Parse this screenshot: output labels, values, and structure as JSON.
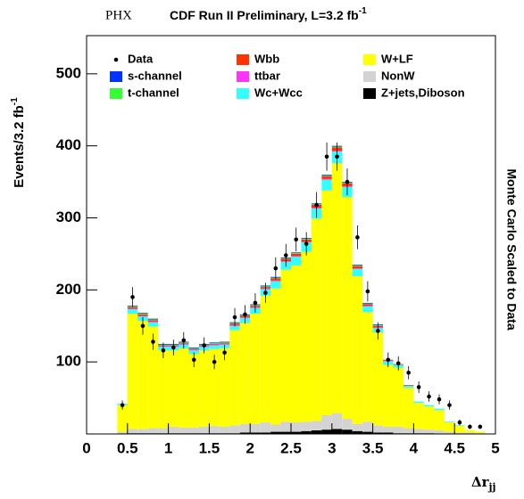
{
  "chart_data": {
    "type": "stacked-histogram",
    "header": "PHX",
    "title": "CDF Run II Preliminary, L=3.2 fb",
    "title_superscript": "-1",
    "ylabel": "Events/3.2 fb",
    "ylabel_superscript": "-1",
    "xlabel": "Δr",
    "xlabel_subscript": "jj",
    "right_label": "Monte Carlo Scaled to Data",
    "xlim": [
      0,
      5
    ],
    "ylim": [
      0,
      553
    ],
    "xticks": [
      0,
      0.5,
      1,
      1.5,
      2,
      2.5,
      3,
      3.5,
      4,
      4.5,
      5
    ],
    "yticks": [
      100,
      200,
      300,
      400,
      500
    ],
    "bins": [
      0.375,
      0.5,
      0.625,
      0.75,
      0.875,
      1,
      1.125,
      1.25,
      1.375,
      1.5,
      1.625,
      1.75,
      1.875,
      2,
      2.125,
      2.25,
      2.375,
      2.5,
      2.625,
      2.75,
      2.875,
      3,
      3.125,
      3.25,
      3.375,
      3.5,
      3.625,
      3.75,
      3.875,
      4,
      4.125,
      4.25,
      4.375,
      4.5,
      4.625,
      4.75,
      4.875,
      5
    ],
    "data": {
      "name": "Data",
      "color": "#000000",
      "values": [
        40,
        190,
        150,
        128,
        116,
        120,
        130,
        103,
        123,
        100,
        113,
        162,
        166,
        182,
        196,
        230,
        248,
        270,
        264,
        318,
        385,
        385,
        350,
        273,
        198,
        143,
        103,
        98,
        85,
        65,
        52,
        48,
        40,
        16,
        10,
        10,
        null
      ]
    },
    "series": [
      {
        "name": "s-channel",
        "color": "#0033ff",
        "values": [
          0,
          1,
          1,
          1,
          1,
          1,
          1,
          1,
          1,
          1,
          1,
          1,
          1,
          1,
          1,
          1,
          1,
          1,
          1,
          1,
          1,
          1,
          1,
          1,
          1,
          1,
          0,
          0,
          0,
          0,
          0,
          0,
          0,
          0,
          0,
          0,
          0
        ]
      },
      {
        "name": "t-channel",
        "color": "#33ff33",
        "values": [
          0,
          1,
          1,
          1,
          1,
          1,
          1,
          1,
          1,
          1,
          1,
          1,
          1,
          1,
          1,
          1,
          1,
          1,
          1,
          1,
          1,
          1,
          1,
          1,
          1,
          1,
          0,
          0,
          0,
          0,
          0,
          0,
          0,
          0,
          0,
          0,
          0
        ]
      },
      {
        "name": "Wbb",
        "color": "#ff3300",
        "values": [
          0,
          2,
          2,
          2,
          1,
          1,
          1,
          1,
          1,
          1,
          1,
          2,
          2,
          2,
          2,
          3,
          3,
          3,
          3,
          4,
          4,
          5,
          4,
          3,
          2,
          2,
          1,
          1,
          1,
          0,
          0,
          0,
          0,
          0,
          0,
          0,
          0
        ]
      },
      {
        "name": "ttbar",
        "color": "#ff33ff",
        "values": [
          0,
          1,
          1,
          1,
          1,
          1,
          1,
          1,
          1,
          1,
          1,
          1,
          1,
          1,
          1,
          1,
          1,
          1,
          1,
          1,
          1,
          1,
          1,
          1,
          1,
          1,
          1,
          0,
          0,
          0,
          0,
          0,
          0,
          0,
          0,
          0,
          0
        ]
      },
      {
        "name": "Wc+Wcc",
        "color": "#33ffff",
        "values": [
          2,
          6,
          6,
          6,
          5,
          5,
          5,
          5,
          5,
          5,
          5,
          6,
          7,
          8,
          9,
          10,
          11,
          12,
          13,
          14,
          15,
          16,
          14,
          10,
          8,
          6,
          5,
          4,
          3,
          2,
          2,
          2,
          1,
          1,
          0,
          0,
          0
        ]
      },
      {
        "name": "W+LF",
        "color": "#ffff00",
        "values": [
          37,
          160,
          150,
          141,
          108,
          106,
          110,
          102,
          106,
          107,
          109,
          132,
          140,
          153,
          176,
          189,
          211,
          218,
          236,
          281,
          312,
          347,
          308,
          205,
          152,
          129,
          86,
          82,
          56,
          36,
          32,
          28,
          13,
          9,
          3,
          2,
          0
        ]
      },
      {
        "name": "NonW",
        "color": "#d3d3d3",
        "values": [
          3,
          6,
          6,
          7,
          7,
          9,
          8,
          8,
          9,
          10,
          9,
          11,
          12,
          12,
          14,
          10,
          14,
          13,
          13,
          13,
          20,
          22,
          15,
          10,
          14,
          10,
          8,
          9,
          7,
          6,
          5,
          5,
          3,
          2,
          2,
          1,
          0
        ]
      },
      {
        "name": "Z+jets,Diboson",
        "color": "#000000",
        "values": [
          0,
          1,
          1,
          1,
          1,
          1,
          1,
          1,
          1,
          1,
          1,
          1,
          2,
          2,
          2,
          3,
          3,
          3,
          4,
          5,
          6,
          7,
          6,
          4,
          3,
          2,
          2,
          1,
          1,
          1,
          1,
          0,
          0,
          0,
          0,
          0,
          0
        ]
      }
    ]
  }
}
